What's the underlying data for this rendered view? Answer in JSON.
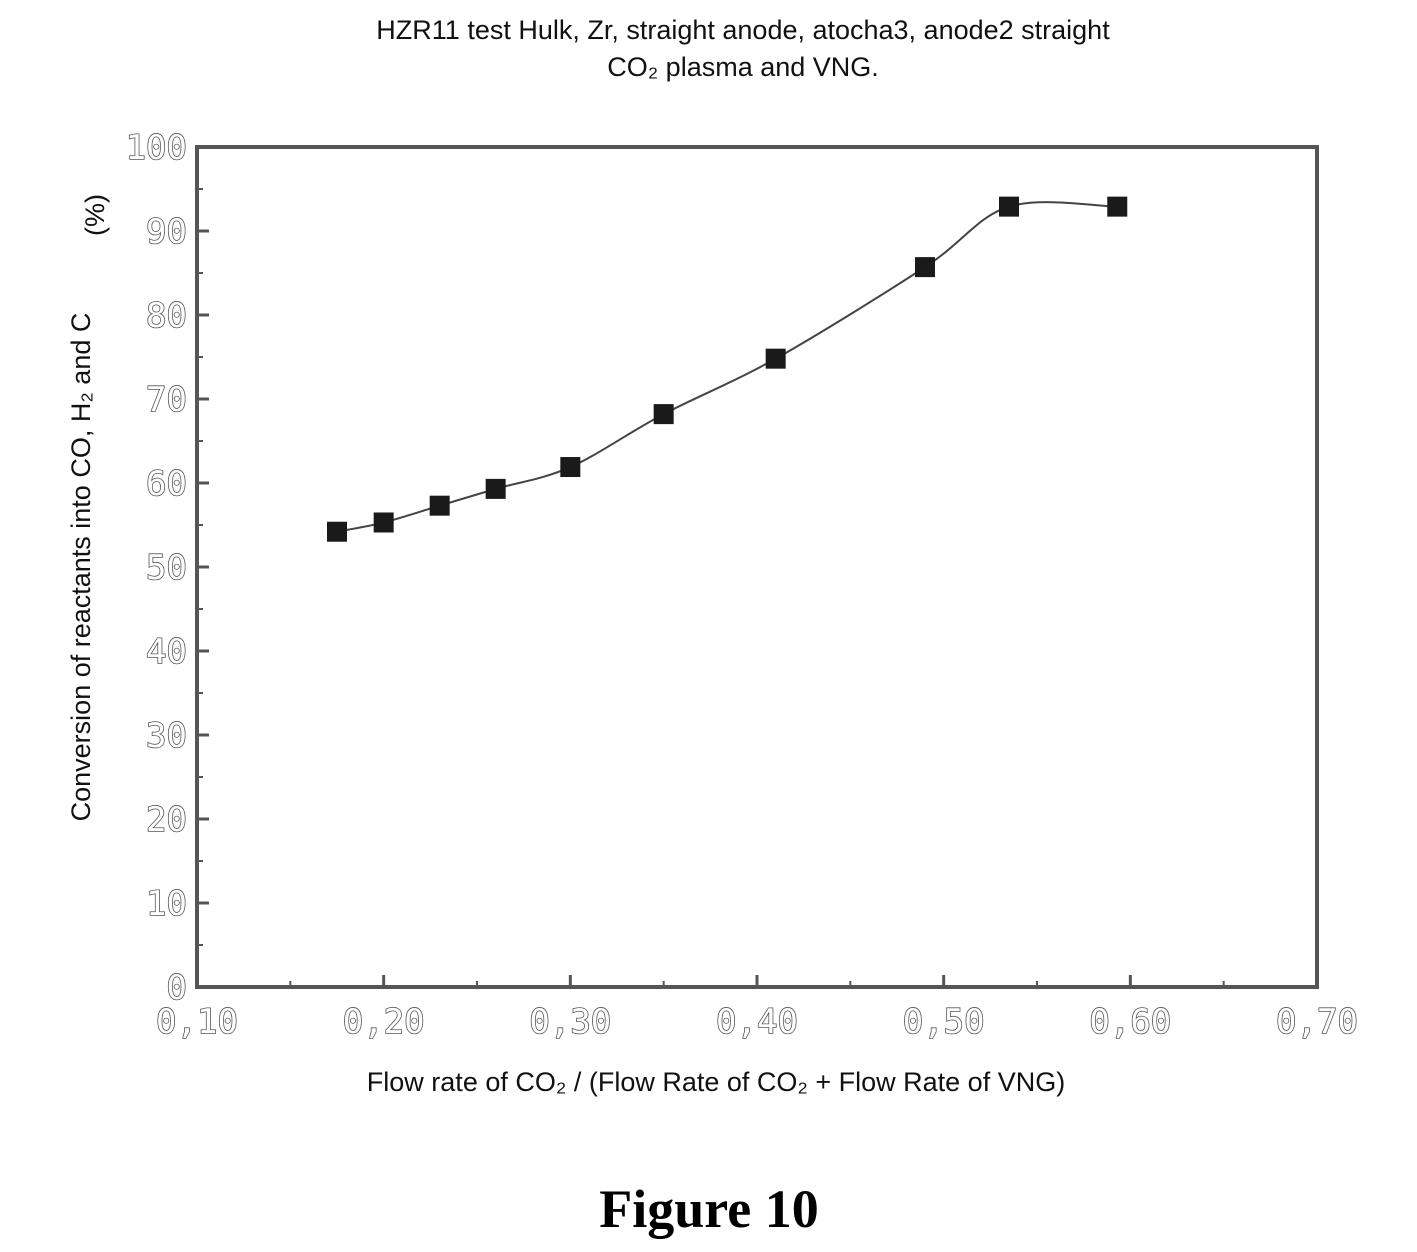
{
  "chart_data": {
    "type": "line",
    "title": "HZR11 test Hulk, Zr, straight anode, atocha3, anode2 straight",
    "subtitle": "CO₂ plasma and VNG.",
    "xlabel": "Flow rate of CO₂ / (Flow Rate of CO₂ + Flow Rate of VNG)",
    "ylabel": "Conversion of reactants into CO, H₂ and C",
    "ylabel_unit": "(%)",
    "xlim": [
      0.1,
      0.7
    ],
    "ylim": [
      0,
      100
    ],
    "x_ticks": [
      0.1,
      0.2,
      0.3,
      0.4,
      0.5,
      0.6,
      0.7
    ],
    "x_tick_labels": [
      "0,10",
      "0,20",
      "0,30",
      "0,40",
      "0,50",
      "0,60",
      "0,70"
    ],
    "y_ticks": [
      0,
      10,
      20,
      30,
      40,
      50,
      60,
      70,
      80,
      90,
      100
    ],
    "y_tick_labels": [
      "0",
      "10",
      "20",
      "30",
      "40",
      "50",
      "60",
      "70",
      "80",
      "90",
      "100"
    ],
    "grid": false,
    "marker": "square",
    "series": [
      {
        "x": [
          0.175,
          0.2,
          0.23,
          0.26,
          0.3,
          0.35,
          0.41,
          0.49,
          0.535,
          0.593
        ],
        "y": [
          54.2,
          55.3,
          57.3,
          59.3,
          61.9,
          68.2,
          74.8,
          85.7,
          92.9,
          92.9
        ]
      }
    ]
  },
  "caption": "Figure 10",
  "colors": {
    "line": "#444444",
    "marker": "#1a1a1a",
    "axis": "#555555"
  }
}
